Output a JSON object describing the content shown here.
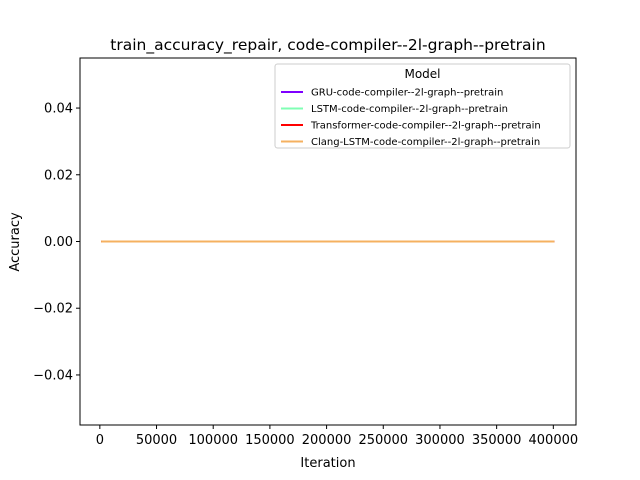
{
  "chart_data": {
    "type": "line",
    "title": "train_accuracy_repair, code-compiler--2l-graph--pretrain",
    "xlabel": "Iteration",
    "ylabel": "Accuracy",
    "xlim": [
      -17500,
      420000
    ],
    "ylim": [
      -0.055,
      0.055
    ],
    "xticks": [
      0,
      50000,
      100000,
      150000,
      200000,
      250000,
      300000,
      350000,
      400000
    ],
    "yticks": [
      -0.04,
      -0.02,
      0.0,
      0.02,
      0.04
    ],
    "xtick_labels": [
      "0",
      "50000",
      "100000",
      "150000",
      "200000",
      "250000",
      "300000",
      "350000",
      "400000"
    ],
    "ytick_labels": [
      "−0.04",
      "−0.02",
      "0.00",
      "0.02",
      "0.04"
    ],
    "grid": false,
    "legend": {
      "title": "Model",
      "placement": "top-right"
    },
    "series": [
      {
        "name": "GRU-code-compiler--2l-graph--pretrain",
        "color": "#7f00ff",
        "x": [
          2000,
          400000
        ],
        "y": [
          0,
          0
        ]
      },
      {
        "name": "LSTM-code-compiler--2l-graph--pretrain",
        "color": "#80ffb4",
        "x": [
          2000,
          400000
        ],
        "y": [
          0,
          0
        ]
      },
      {
        "name": "Transformer-code-compiler--2l-graph--pretrain",
        "color": "#ff0000",
        "x": [
          2000,
          400000
        ],
        "y": [
          0,
          0
        ]
      },
      {
        "name": "Clang-LSTM-code-compiler--2l-graph--pretrain",
        "color": "#f5b160",
        "x": [
          2000,
          400000
        ],
        "y": [
          0,
          0
        ]
      }
    ]
  }
}
